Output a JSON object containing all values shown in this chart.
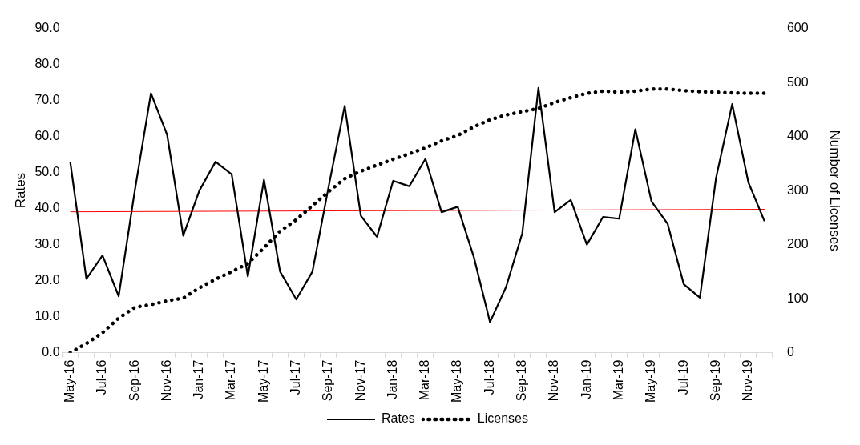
{
  "chart_data": {
    "type": "line",
    "ylabel": "Rates",
    "y2label": "Number of Licenses",
    "categories": [
      "May-16",
      null,
      "Jul-16",
      null,
      "Sep-16",
      null,
      "Nov-16",
      null,
      "Jan-17",
      null,
      "Mar-17",
      null,
      "May-17",
      null,
      "Jul-17",
      null,
      "Sep-17",
      null,
      "Nov-17",
      null,
      "Jan-18",
      null,
      "Mar-18",
      null,
      "May-18",
      null,
      "Jul-18",
      null,
      "Sep-18",
      null,
      "Nov-18",
      null,
      "Jan-19",
      null,
      "Mar-19",
      null,
      "May-19",
      null,
      "Jul-19",
      null,
      "Sep-19",
      null,
      "Nov-19",
      null
    ],
    "series": [
      {
        "name": "Rates",
        "color": "#000000",
        "line_style": "solid",
        "values": [
          53.0,
          20.5,
          27.0,
          15.7,
          45.0,
          72.0,
          60.5,
          32.5,
          45.0,
          53.0,
          49.5,
          21.2,
          48.0,
          22.5,
          14.8,
          22.5,
          46.0,
          68.5,
          38.0,
          32.2,
          47.7,
          46.2,
          53.8,
          39.0,
          40.5,
          26.5,
          8.5,
          18.3,
          33.2,
          73.5,
          39.0,
          42.4,
          30.0,
          37.7,
          37.2,
          62.0,
          42.0,
          35.8,
          19.0,
          15.3,
          48.5,
          69.0,
          47.3,
          36.5
        ]
      },
      {
        "name": "Licenses",
        "color": "#000000",
        "line_style": "dotted",
        "axis": "y2",
        "values": [
          0,
          17,
          37,
          64,
          84,
          89,
          96,
          101,
          120,
          136,
          150,
          165,
          194,
          225,
          246,
          272,
          298,
          322,
          336,
          347,
          358,
          368,
          379,
          392,
          402,
          418,
          431,
          440,
          446,
          452,
          463,
          472,
          480,
          484,
          482,
          484,
          488,
          488,
          485,
          483,
          482,
          481,
          480,
          480
        ]
      },
      {
        "color": "#ff0000",
        "line_style": "solid",
        "values": [
          39.1,
          null,
          null,
          null,
          null,
          null,
          null,
          null,
          null,
          null,
          null,
          null,
          null,
          null,
          null,
          null,
          null,
          null,
          null,
          null,
          null,
          null,
          null,
          null,
          null,
          null,
          null,
          null,
          null,
          null,
          null,
          null,
          null,
          null,
          null,
          null,
          null,
          null,
          null,
          null,
          null,
          null,
          null,
          39.8
        ]
      }
    ],
    "ylim": [
      0,
      90
    ],
    "yticks": [
      {
        "value": 0,
        "label": "0.0"
      },
      {
        "value": 10,
        "label": "10.0"
      },
      {
        "value": 20,
        "label": "20.0"
      },
      {
        "value": 30,
        "label": "30.0"
      },
      {
        "value": 40,
        "label": "40.0"
      },
      {
        "value": 50,
        "label": "50.0"
      },
      {
        "value": 60,
        "label": "60.0"
      },
      {
        "value": 70,
        "label": "70.0"
      },
      {
        "value": 80,
        "label": "80.0"
      },
      {
        "value": 90,
        "label": "90.0"
      }
    ],
    "y2lim": [
      0,
      600
    ],
    "y2ticks": [
      0,
      100,
      200,
      300,
      400,
      500,
      600
    ],
    "grid": false,
    "legend": "bottom",
    "marker": "none"
  }
}
